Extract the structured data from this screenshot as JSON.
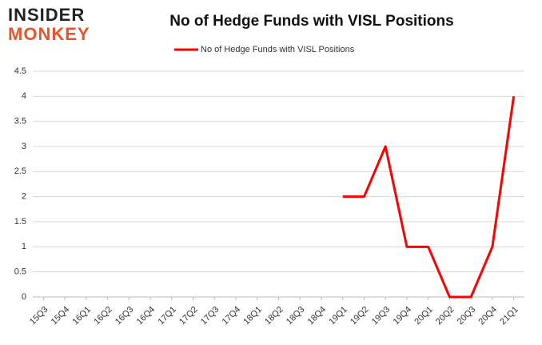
{
  "logo": {
    "line1": "INSIDER",
    "line2": "MONKEY"
  },
  "chart_data": {
    "type": "line",
    "title": "No of Hedge Funds with VISL Positions",
    "categories": [
      "15Q3",
      "15Q4",
      "16Q1",
      "16Q2",
      "16Q3",
      "16Q4",
      "17Q1",
      "17Q2",
      "17Q3",
      "17Q4",
      "18Q1",
      "18Q2",
      "18Q3",
      "18Q4",
      "19Q1",
      "19Q2",
      "19Q3",
      "19Q4",
      "20Q1",
      "20Q2",
      "20Q3",
      "20Q4",
      "21Q1"
    ],
    "series": [
      {
        "name": "No of Hedge Funds with VISL Positions",
        "color": "#ff0000",
        "values": [
          null,
          null,
          null,
          null,
          null,
          null,
          null,
          null,
          null,
          null,
          null,
          null,
          null,
          null,
          2,
          2,
          3,
          1,
          1,
          0,
          0,
          1,
          4
        ]
      }
    ],
    "ylim": [
      0,
      4.5
    ],
    "yticks": [
      0,
      0.5,
      1,
      1.5,
      2,
      2.5,
      3,
      3.5,
      4,
      4.5
    ],
    "grid": true,
    "legend": "top"
  }
}
